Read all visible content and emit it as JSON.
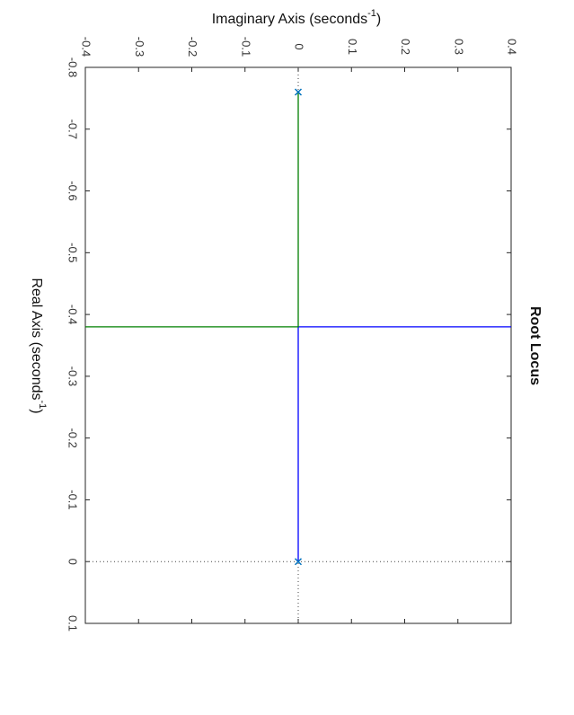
{
  "chart_data": {
    "type": "line",
    "title": "Root Locus",
    "xlabel": [
      "Real Axis (seconds",
      "-1",
      ")"
    ],
    "ylabel": [
      "Imaginary Axis (seconds",
      "-1",
      ")"
    ],
    "xlim": [
      -0.8,
      0.1
    ],
    "xticks": [
      -0.8,
      -0.7,
      -0.6,
      -0.5,
      -0.4,
      -0.3,
      -0.2,
      -0.1,
      0,
      0.1
    ],
    "ylim": [
      -0.4,
      0.4
    ],
    "yticks": [
      -0.4,
      -0.3,
      -0.2,
      -0.1,
      0,
      0.1,
      0.2,
      0.3,
      0.4
    ],
    "series": [
      {
        "color": "#0000ff",
        "x": [
          0,
          -0.38,
          -0.38
        ],
        "values": [
          0,
          0,
          0.4
        ]
      },
      {
        "color": "#008000",
        "x": [
          -0.76,
          -0.38,
          -0.38
        ],
        "values": [
          0,
          0,
          -0.4
        ]
      }
    ],
    "poles": {
      "color": "#0072bd",
      "x": [
        0,
        -0.76
      ],
      "values": [
        0,
        0
      ]
    }
  }
}
